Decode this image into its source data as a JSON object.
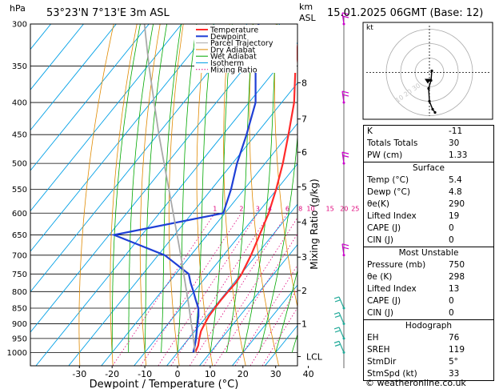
{
  "header": {
    "pressure_unit": "hPa",
    "location": "53°23'N 7°13'E 3m ASL",
    "km_label": "km",
    "asl_label": "ASL",
    "datetime": "15.01.2025 06GMT (Base: 12)"
  },
  "chart_data": {
    "type": "line",
    "xlabel": "Dewpoint / Temperature (°C)",
    "ylabel_right": "Mixing Ratio (g/kg)",
    "pressure_levels": [
      300,
      350,
      400,
      450,
      500,
      550,
      600,
      650,
      700,
      750,
      800,
      850,
      900,
      950,
      1000
    ],
    "temperature_ticks": [
      -30,
      -20,
      -10,
      0,
      10,
      20,
      30,
      40
    ],
    "xlim": [
      -40,
      40
    ],
    "ylim_hpa": [
      1050,
      300
    ],
    "y_scale": "log",
    "km_ticks": [
      {
        "label": "8",
        "p": 372
      },
      {
        "label": "7",
        "p": 425
      },
      {
        "label": "6",
        "p": 480
      },
      {
        "label": "5",
        "p": 545
      },
      {
        "label": "4",
        "p": 620
      },
      {
        "label": "3",
        "p": 705
      },
      {
        "label": "2",
        "p": 797
      },
      {
        "label": "1",
        "p": 900
      },
      {
        "label": "LCL",
        "p": 1015
      }
    ],
    "mixing_ratio_labels": [
      "1",
      "2",
      "3",
      "4",
      "6",
      "8",
      "10",
      "15",
      "20",
      "25"
    ],
    "mixing_ratio_values": [
      1,
      2,
      3,
      4,
      6,
      8,
      10,
      15,
      20,
      25
    ],
    "legend": [
      "Temperature",
      "Dewpoint",
      "Parcel Trajectory",
      "Dry Adiabat",
      "Wet Adiabat",
      "Isotherm",
      "Mixing Ratio"
    ],
    "series": [
      {
        "name": "Temperature",
        "color": "#ff2a2a",
        "p": [
          1000,
          975,
          950,
          925,
          900,
          875,
          850,
          825,
          800,
          775,
          750,
          700,
          650,
          600,
          550,
          500,
          450,
          400,
          350,
          300
        ],
        "t": [
          5.4,
          4.6,
          3.2,
          1.9,
          1.2,
          0.6,
          0.4,
          0.3,
          0.4,
          0.6,
          0.2,
          -1.6,
          -4.0,
          -6.6,
          -10.2,
          -14.6,
          -20.0,
          -26.2,
          -34.8,
          -43.8
        ]
      },
      {
        "name": "Dewpoint",
        "color": "#1f3fd6",
        "p": [
          1000,
          975,
          950,
          925,
          900,
          875,
          850,
          825,
          800,
          775,
          750,
          700,
          650,
          600,
          550,
          500,
          450,
          400,
          350,
          300
        ],
        "t": [
          4.8,
          3.6,
          2.2,
          0.6,
          -1.0,
          -2.6,
          -4.6,
          -7.4,
          -10.2,
          -13.2,
          -16.0,
          -28.0,
          -48.5,
          -20.5,
          -24.0,
          -28.6,
          -32.8,
          -38.0,
          -47.0,
          -56.5
        ]
      },
      {
        "name": "Parcel Trajectory",
        "color": "#a9a9a9",
        "p": [
          1000,
          975,
          950,
          925,
          900,
          850,
          800,
          750,
          700,
          650,
          600,
          550,
          500,
          450,
          400,
          350,
          300
        ],
        "t": [
          5.4,
          3.4,
          1.4,
          -0.7,
          -2.9,
          -7.4,
          -12.3,
          -17.5,
          -23.1,
          -29.2,
          -35.8,
          -43.0,
          -50.9,
          -59.6,
          -69.0,
          -79.6,
          -91.4
        ]
      }
    ],
    "hodograph": {
      "rings": [
        "10",
        "20",
        "30"
      ],
      "ring_label_ghost": "10 20 30"
    },
    "wind_barb_levels": [
      300,
      400,
      500,
      700,
      850,
      900,
      950,
      1000
    ]
  },
  "indices": {
    "top": [
      {
        "label": "K",
        "value": "-11"
      },
      {
        "label": "Totals Totals",
        "value": "30"
      },
      {
        "label": "PW (cm)",
        "value": "1.33"
      }
    ],
    "surface_title": "Surface",
    "surface": [
      {
        "label": "Temp (°C)",
        "value": "5.4"
      },
      {
        "label": "Dewp (°C)",
        "value": "4.8"
      },
      {
        "label": "θe(K)",
        "value": "290"
      },
      {
        "label": "Lifted Index",
        "value": "19"
      },
      {
        "label": "CAPE (J)",
        "value": "0"
      },
      {
        "label": "CIN (J)",
        "value": "0"
      }
    ],
    "mu_title": "Most Unstable",
    "most_unstable": [
      {
        "label": "Pressure (mb)",
        "value": "750"
      },
      {
        "label": "θe (K)",
        "value": "298"
      },
      {
        "label": "Lifted Index",
        "value": "13"
      },
      {
        "label": "CAPE (J)",
        "value": "0"
      },
      {
        "label": "CIN (J)",
        "value": "0"
      }
    ],
    "hodo_title": "Hodograph",
    "hodograph": [
      {
        "label": "EH",
        "value": "76"
      },
      {
        "label": "SREH",
        "value": "119"
      },
      {
        "label": "StmDir",
        "value": "5°"
      },
      {
        "label": "StmSpd (kt)",
        "value": "33"
      }
    ]
  },
  "hodo_panel": {
    "unit": "kt"
  },
  "copyright": "© weatheronline.co.uk",
  "colors": {
    "temperature": "#ff2a2a",
    "dewpoint": "#1f3fd6",
    "parcel": "#a9a9a9",
    "dry_adiabat": "#e08a00",
    "wet_adiabat": "#00a800",
    "isotherm": "#00a0e6",
    "mixing_ratio": "#e0007a",
    "barb": "#cc00cc"
  }
}
